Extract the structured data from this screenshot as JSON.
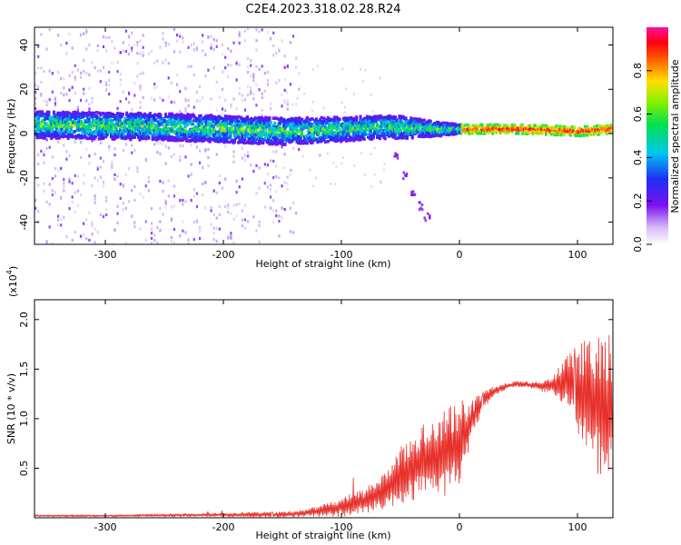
{
  "title": "C2E4.2023.318.02.28.R24",
  "colors": {
    "signal_line": "#e8302a",
    "speckle": "#a97df0",
    "track": "#7a12f0",
    "axis": "#000000"
  },
  "chart_data": [
    {
      "type": "heatmap",
      "name": "spectrogram",
      "xlabel": "Height of straight line (km)",
      "ylabel": "Frequency (Hz)",
      "xlim": [
        -360,
        130
      ],
      "ylim": [
        -50,
        48
      ],
      "x_ticks": [
        -300,
        -200,
        -100,
        0,
        100
      ],
      "y_ticks": [
        -40,
        -20,
        0,
        20,
        40
      ],
      "colorbar": {
        "label": "Normalized spectral amplitude",
        "range": [
          0.0,
          1.0
        ],
        "ticks": [
          "0.0",
          "0.2",
          "0.4",
          "0.6",
          "0.8"
        ],
        "tick_values": [
          0.0,
          0.2,
          0.4,
          0.6,
          0.8
        ],
        "colormap": "rainbow (white → violet → blue → cyan → green → yellow → red → magenta)"
      },
      "features": {
        "noise_region_end_km": -150,
        "central_track_freq_hz": [
          [
            -360,
            4
          ],
          [
            -250,
            3
          ],
          [
            -150,
            1
          ],
          [
            -100,
            2
          ],
          [
            -60,
            3
          ],
          [
            -20,
            2
          ],
          [
            0,
            2
          ],
          [
            50,
            2
          ],
          [
            100,
            1
          ],
          [
            130,
            2
          ]
        ],
        "central_track_halfwidth_hz": [
          [
            -360,
            6
          ],
          [
            -150,
            6
          ],
          [
            -50,
            5
          ],
          [
            0,
            2
          ],
          [
            130,
            2
          ]
        ],
        "peak_amplitude_segment_km": [
          0,
          130
        ],
        "descending_branch": [
          [
            -55,
            -10
          ],
          [
            -48,
            -18
          ],
          [
            -40,
            -26
          ],
          [
            -34,
            -32
          ],
          [
            -28,
            -37
          ]
        ]
      }
    },
    {
      "type": "line",
      "name": "snr",
      "xlabel": "Height of straight line (km)",
      "ylabel": "SNR (10 * v/v)",
      "y_scale_label": "(x10",
      "y_scale_exponent": "4",
      "y_scale_suffix": ")",
      "xlim": [
        -360,
        130
      ],
      "ylim": [
        0,
        2.2
      ],
      "x_ticks": [
        -300,
        -200,
        -100,
        0,
        100
      ],
      "y_ticks": [
        0.5,
        1.0,
        1.5,
        2.0
      ],
      "y_tick_labels": [
        "0.5",
        "1.0",
        "1.5",
        "2.0"
      ],
      "series": [
        {
          "color": "#e8302a",
          "envelope": {
            "x": [
              -360,
              -300,
              -200,
              -150,
              -130,
              -110,
              -100,
              -80,
              -60,
              -50,
              -40,
              -30,
              -20,
              -10,
              0,
              10,
              20,
              30,
              40,
              50,
              60,
              70,
              80,
              90,
              100,
              110,
              120,
              130
            ],
            "mean": [
              0.02,
              0.02,
              0.03,
              0.03,
              0.05,
              0.08,
              0.11,
              0.17,
              0.3,
              0.42,
              0.5,
              0.58,
              0.62,
              0.66,
              0.75,
              0.98,
              1.18,
              1.28,
              1.33,
              1.35,
              1.34,
              1.32,
              1.34,
              1.38,
              1.3,
              1.22,
              1.15,
              1.1
            ],
            "amp": [
              0.01,
              0.01,
              0.02,
              0.03,
              0.04,
              0.07,
              0.1,
              0.12,
              0.2,
              0.3,
              0.34,
              0.38,
              0.4,
              0.45,
              0.45,
              0.2,
              0.1,
              0.05,
              0.03,
              0.03,
              0.03,
              0.05,
              0.1,
              0.25,
              0.45,
              0.6,
              0.8,
              0.8
            ]
          }
        }
      ]
    }
  ]
}
